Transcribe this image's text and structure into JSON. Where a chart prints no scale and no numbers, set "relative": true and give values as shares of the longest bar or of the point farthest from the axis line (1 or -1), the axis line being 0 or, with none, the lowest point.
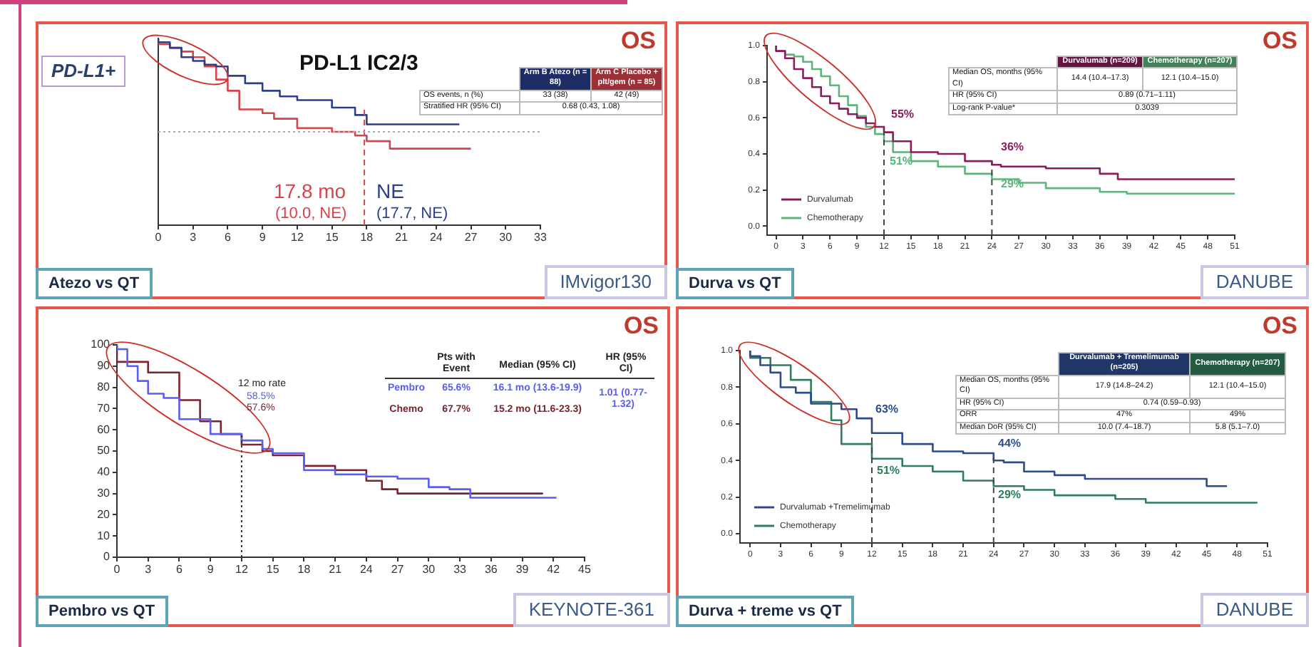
{
  "chart_data": [
    {
      "type": "step",
      "title": "PD-L1 IC2/3",
      "relative": true,
      "tick_labels": "x",
      "grid": false,
      "legend": false,
      "xlim": [
        0,
        33
      ],
      "xticks": [
        0,
        3,
        6,
        9,
        12,
        15,
        18,
        21,
        24,
        27,
        30,
        33
      ],
      "series": [
        {
          "color": "#2b3f8c",
          "x": [
            0,
            1,
            2,
            3,
            4,
            5,
            6,
            7.5,
            9,
            10.5,
            12,
            15,
            17,
            18,
            19,
            26
          ],
          "values": [
            1,
            0.98,
            0.95,
            0.9,
            0.88,
            0.86,
            0.85,
            0.8,
            0.76,
            0.72,
            0.69,
            0.67,
            0.63,
            0.59,
            0.54,
            0.54
          ]
        },
        {
          "color": "#d9434b",
          "x": [
            0,
            1,
            2,
            3,
            4,
            5,
            6,
            7,
            9,
            10,
            12,
            15,
            17,
            18,
            20,
            23,
            27
          ],
          "values": [
            1,
            0.97,
            0.95,
            0.93,
            0.9,
            0.85,
            0.78,
            0.72,
            0.62,
            0.6,
            0.57,
            0.52,
            0.5,
            0.48,
            0.45,
            0.41,
            0.41
          ]
        }
      ],
      "ref_lines": [
        {
          "axis": "x",
          "value": 17.8,
          "color": "#d9434b",
          "line_style": "dashed"
        },
        {
          "axis": "y",
          "value": 0.5,
          "color": "#aaaaaa",
          "line_style": "dotted"
        }
      ],
      "annotations": [
        "OS",
        "PD-L1+",
        "Atezo vs QT",
        "IMvigor130",
        "17.8 mo",
        "(10.0, NE)",
        "NE",
        "(17.7, NE)",
        "Arm B Atezo (n = 88)",
        "Arm C Placebo + plt/gem (n = 85)",
        "OS events, n (%)",
        "33 (38)",
        "42 (49)",
        "Stratified HR (95% CI)",
        "0.68 (0.43, 1.08)"
      ]
    },
    {
      "type": "step",
      "grid": false,
      "legend": "bottom left",
      "xlim": [
        -1,
        51
      ],
      "xticks": [
        0,
        3,
        6,
        9,
        12,
        15,
        18,
        21,
        24,
        27,
        30,
        33,
        36,
        39,
        42,
        45,
        48,
        51
      ],
      "ylim": [
        -0.05,
        1
      ],
      "yticks": [
        {
          "value": 0,
          "label": "0.0"
        },
        {
          "value": 0.2,
          "label": "0.2"
        },
        {
          "value": 0.4,
          "label": "0.4"
        },
        {
          "value": 0.6,
          "label": "0.6"
        },
        {
          "value": 0.8,
          "label": "0.8"
        },
        {
          "value": 1,
          "label": "1.0"
        }
      ],
      "series": [
        {
          "name": "Durvalumab",
          "color": "#8b1d5c",
          "x": [
            0,
            1,
            2,
            3,
            4,
            5,
            6,
            7,
            8,
            9,
            10,
            11,
            12,
            13,
            15,
            18,
            21,
            24,
            25,
            30,
            36,
            38,
            40,
            51
          ],
          "values": [
            1,
            0.97,
            0.93,
            0.87,
            0.82,
            0.77,
            0.72,
            0.68,
            0.65,
            0.62,
            0.6,
            0.57,
            0.55,
            0.52,
            0.47,
            0.41,
            0.4,
            0.36,
            0.34,
            0.33,
            0.32,
            0.29,
            0.26,
            0.26
          ]
        },
        {
          "name": "Chemotherapy",
          "color": "#5cb57a",
          "x": [
            0,
            1,
            2,
            3,
            4,
            5,
            6,
            7,
            8,
            9,
            10,
            11,
            12,
            13,
            15,
            18,
            21,
            24,
            27,
            30,
            36,
            39,
            41,
            51
          ],
          "values": [
            1,
            0.97,
            0.95,
            0.94,
            0.91,
            0.87,
            0.83,
            0.78,
            0.72,
            0.67,
            0.61,
            0.55,
            0.51,
            0.47,
            0.41,
            0.36,
            0.33,
            0.29,
            0.26,
            0.24,
            0.21,
            0.19,
            0.18,
            0.18
          ]
        }
      ],
      "ref_lines": [
        {
          "axis": "x",
          "value": 12,
          "color": "#444444",
          "line_style": "dashed"
        },
        {
          "axis": "x",
          "value": 24,
          "color": "#444444",
          "line_style": "dashed"
        }
      ],
      "annotations": [
        "OS",
        "Durva vs QT",
        "DANUBE",
        "Durvalumab (n=209)",
        "Chemotherapy (n=207)",
        "Median OS, months (95% CI)",
        "14.4 (10.4–17.3)",
        "12.1 (10.4–15.0)",
        "HR (95% CI)",
        "0.89 (0.71–1.11)",
        "Log-rank P-value*",
        "0.3039",
        "55%",
        "36%",
        "51%",
        "29%"
      ]
    },
    {
      "type": "step",
      "grid": false,
      "legend": false,
      "xlim": [
        0,
        45
      ],
      "xticks": [
        0,
        3,
        6,
        9,
        12,
        15,
        18,
        21,
        24,
        27,
        30,
        33,
        36,
        39,
        42,
        45
      ],
      "ylim": [
        0,
        100
      ],
      "yticks": [
        0,
        10,
        20,
        30,
        40,
        50,
        60,
        70,
        80,
        90,
        100
      ],
      "series": [
        {
          "name": "Pembro",
          "color": "#5b5ef0",
          "x": [
            0,
            1,
            2,
            3,
            4.5,
            6,
            9,
            12,
            14,
            15,
            18,
            21,
            24,
            27,
            30,
            32,
            34,
            36,
            42.3
          ],
          "values": [
            100,
            98,
            90,
            83,
            77,
            75,
            65,
            58,
            55,
            51,
            49,
            41,
            39,
            38,
            37,
            33,
            32,
            28,
            28
          ]
        },
        {
          "name": "Chemo",
          "color": "#7b2430",
          "x": [
            0,
            3,
            6,
            8,
            10,
            12,
            14,
            15,
            18,
            21,
            24,
            25.5,
            27,
            30,
            41
          ],
          "values": [
            100,
            92,
            87,
            74,
            64,
            58,
            53,
            50,
            48,
            43,
            41,
            36,
            32,
            30,
            30
          ]
        }
      ],
      "ref_lines": [
        {
          "axis": "x",
          "value": 12,
          "color": "#333333",
          "line_style": "dotted"
        }
      ],
      "annotations": [
        "OS",
        "Pembro vs QT",
        "KEYNOTE-361",
        "12 mo rate",
        "58.5%",
        "57.6%",
        "Pts with Event",
        "Median (95% CI)",
        "HR (95% CI)",
        "65.6%",
        "16.1 mo (13.6-19.9)",
        "67.7%",
        "15.2 mo (11.6-23.3)",
        "1.01 (0.77-1.32)"
      ]
    },
    {
      "type": "step",
      "grid": false,
      "legend": "bottom left",
      "xlim": [
        -1,
        51
      ],
      "xticks": [
        0,
        3,
        6,
        9,
        12,
        15,
        18,
        21,
        24,
        27,
        30,
        33,
        36,
        39,
        42,
        45,
        48,
        51
      ],
      "ylim": [
        -0.05,
        1
      ],
      "yticks": [
        {
          "value": 0,
          "label": "0.0"
        },
        {
          "value": 0.2,
          "label": "0.2"
        },
        {
          "value": 0.4,
          "label": "0.4"
        },
        {
          "value": 0.6,
          "label": "0.6"
        },
        {
          "value": 0.8,
          "label": "0.8"
        },
        {
          "value": 1,
          "label": "1.0"
        }
      ],
      "series": [
        {
          "name": "Durvalumab +Tremelimumab",
          "color": "#2d4b8e",
          "x": [
            0,
            1,
            2,
            3,
            4.5,
            6,
            9,
            10.5,
            12,
            15,
            18,
            21,
            24,
            25,
            27,
            30,
            33,
            37,
            45,
            45.5,
            47
          ],
          "values": [
            1,
            0.97,
            0.92,
            0.88,
            0.8,
            0.77,
            0.71,
            0.68,
            0.63,
            0.55,
            0.49,
            0.45,
            0.44,
            0.4,
            0.39,
            0.34,
            0.32,
            0.3,
            0.3,
            0.26,
            0.26
          ]
        },
        {
          "name": "Chemotherapy",
          "color": "#2f7d5b",
          "x": [
            0,
            2,
            4,
            6,
            8,
            9,
            12,
            15,
            18,
            21,
            24,
            27,
            30,
            36,
            39,
            42,
            50
          ],
          "values": [
            1,
            0.96,
            0.92,
            0.84,
            0.72,
            0.62,
            0.49,
            0.41,
            0.37,
            0.34,
            0.29,
            0.26,
            0.24,
            0.21,
            0.19,
            0.17,
            0.17
          ]
        }
      ],
      "ref_lines": [
        {
          "axis": "x",
          "value": 12,
          "color": "#444444",
          "line_style": "dashed"
        },
        {
          "axis": "x",
          "value": 24,
          "color": "#444444",
          "line_style": "dashed"
        }
      ],
      "annotations": [
        "OS",
        "Durva + treme vs QT",
        "DANUBE",
        "Durvalumab + Tremelimumab (n=205)",
        "Chemotherapy (n=207)",
        "Median OS, months (95% CI)",
        "17.9 (14.8–24.2)",
        "12.1 (10.4–15.0)",
        "HR (95% CI)",
        "0.74 (0.59–0.93)",
        "ORR",
        "47%",
        "49%",
        "Median DoR (95% CI)",
        "10.0 (7.4–18.7)",
        "5.8 (5.1–7.0)",
        "63%",
        "44%",
        "51%",
        "29%"
      ]
    }
  ]
}
